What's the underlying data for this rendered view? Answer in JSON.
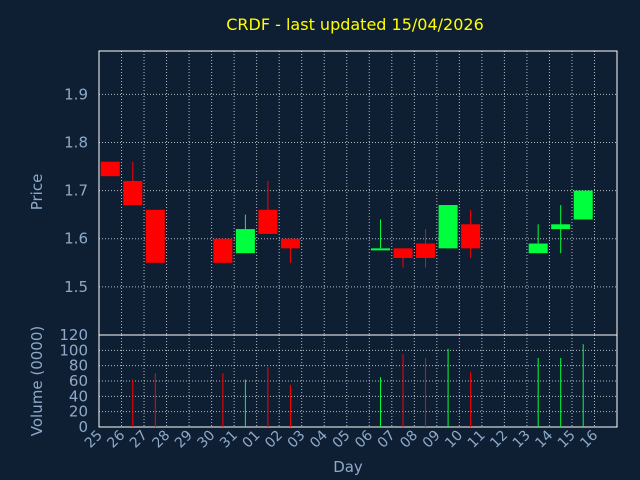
{
  "chart_data": {
    "type": "candlestick",
    "title": "CRDF - last updated 15/04/2026",
    "xlabel": "Day",
    "colors": {
      "background": "#0f1f33",
      "up": "#00ff3c",
      "down": "#ff0000",
      "grid": "#ffffff",
      "title": "#ffff00",
      "text": "#8eaac8"
    },
    "x_ticks": [
      "25",
      "26",
      "27",
      "28",
      "29",
      "30",
      "31",
      "01",
      "02",
      "03",
      "04",
      "05",
      "06",
      "07",
      "08",
      "09",
      "10",
      "11",
      "12",
      "13",
      "14",
      "15",
      "16"
    ],
    "price": {
      "ylabel": "Price",
      "ylim": [
        1.4,
        1.99
      ],
      "yticks": [
        "1.5",
        "1.6",
        "1.7",
        "1.8",
        "1.9"
      ],
      "ytick_values": [
        1.5,
        1.6,
        1.7,
        1.8,
        1.9
      ]
    },
    "volume": {
      "ylabel": "Volume (0000)",
      "ylim": [
        0,
        120
      ],
      "yticks": [
        "0",
        "20",
        "40",
        "60",
        "80",
        "100",
        "120"
      ],
      "ytick_values": [
        0,
        20,
        40,
        60,
        80,
        100,
        120
      ]
    },
    "candles": [
      {
        "day": "25",
        "open": 1.76,
        "high": 1.76,
        "low": 1.73,
        "close": 1.73,
        "volume": 0
      },
      {
        "day": "26",
        "open": 1.72,
        "high": 1.76,
        "low": 1.67,
        "close": 1.67,
        "volume": 62
      },
      {
        "day": "27",
        "open": 1.66,
        "high": 1.66,
        "low": 1.55,
        "close": 1.55,
        "volume": 70
      },
      {
        "day": "30",
        "open": 1.6,
        "high": 1.6,
        "low": 1.55,
        "close": 1.55,
        "volume": 70
      },
      {
        "day": "31",
        "open": 1.57,
        "high": 1.65,
        "low": 1.57,
        "close": 1.62,
        "volume": 62
      },
      {
        "day": "01",
        "open": 1.66,
        "high": 1.72,
        "low": 1.61,
        "close": 1.61,
        "volume": 78
      },
      {
        "day": "02",
        "open": 1.6,
        "high": 1.6,
        "low": 1.55,
        "close": 1.58,
        "volume": 55
      },
      {
        "day": "06",
        "open": 1.58,
        "high": 1.64,
        "low": 1.58,
        "close": 1.58,
        "volume": 65
      },
      {
        "day": "07",
        "open": 1.58,
        "high": 1.58,
        "low": 1.54,
        "close": 1.56,
        "volume": 95
      },
      {
        "day": "08",
        "open": 1.59,
        "high": 1.62,
        "low": 1.54,
        "close": 1.56,
        "volume": 90
      },
      {
        "day": "09",
        "open": 1.58,
        "high": 1.67,
        "low": 1.58,
        "close": 1.67,
        "volume": 102
      },
      {
        "day": "10",
        "open": 1.63,
        "high": 1.66,
        "low": 1.56,
        "close": 1.58,
        "volume": 72
      },
      {
        "day": "13",
        "open": 1.57,
        "high": 1.63,
        "low": 1.57,
        "close": 1.59,
        "volume": 90
      },
      {
        "day": "14",
        "open": 1.62,
        "high": 1.67,
        "low": 1.57,
        "close": 1.63,
        "volume": 90
      },
      {
        "day": "15",
        "open": 1.64,
        "high": 1.7,
        "low": 1.64,
        "close": 1.7,
        "volume": 108
      }
    ]
  }
}
